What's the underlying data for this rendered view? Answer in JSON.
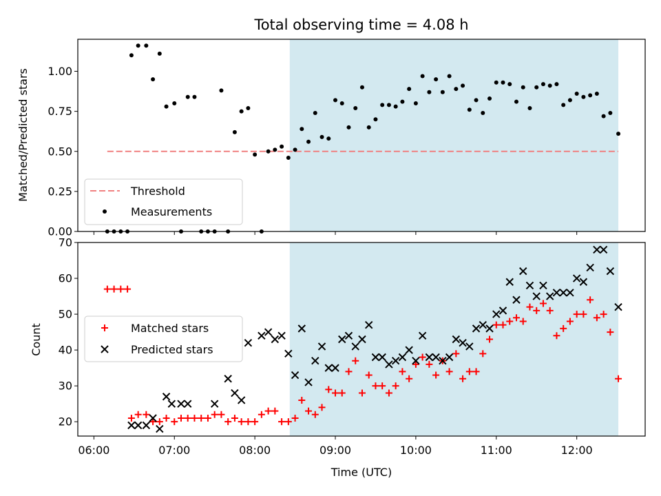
{
  "chart_data": [
    {
      "type": "scatter",
      "title": "Total observing time = 4.08 h",
      "xlabel": "",
      "ylabel": "Matched/Predicted stars",
      "ylim": [
        0,
        1.2
      ],
      "yticks": [
        "0.00",
        "0.25",
        "0.50",
        "0.75",
        "1.00"
      ],
      "xlim": [
        "05:48",
        "12:51"
      ],
      "shaded_region": {
        "x_start": "08:26",
        "x_end": "12:31",
        "color": "#d3e9f0"
      },
      "threshold": {
        "name": "Threshold",
        "value": 0.5,
        "x_start": "06:10",
        "x_end": "12:31",
        "color": "#f08080",
        "style": "dashed"
      },
      "series": [
        {
          "name": "Measurements",
          "color": "#000000",
          "x": [
            "06:10",
            "06:15",
            "06:20",
            "06:25",
            "06:28",
            "06:33",
            "06:39",
            "06:44",
            "06:49",
            "06:54",
            "07:00",
            "07:05",
            "07:10",
            "07:15",
            "07:20",
            "07:25",
            "07:30",
            "07:35",
            "07:40",
            "07:45",
            "07:50",
            "07:55",
            "08:00",
            "08:05",
            "08:10",
            "08:15",
            "08:20",
            "08:25",
            "08:30",
            "08:35",
            "08:40",
            "08:45",
            "08:50",
            "08:55",
            "09:00",
            "09:05",
            "09:10",
            "09:15",
            "09:20",
            "09:25",
            "09:30",
            "09:35",
            "09:40",
            "09:45",
            "09:50",
            "09:55",
            "10:00",
            "10:05",
            "10:10",
            "10:15",
            "10:20",
            "10:25",
            "10:30",
            "10:35",
            "10:40",
            "10:45",
            "10:50",
            "10:55",
            "11:00",
            "11:05",
            "11:10",
            "11:15",
            "11:20",
            "11:25",
            "11:30",
            "11:35",
            "11:40",
            "11:45",
            "11:50",
            "11:55",
            "12:00",
            "12:05",
            "12:10",
            "12:15",
            "12:20",
            "12:25",
            "12:31"
          ],
          "y": [
            0.0,
            0.0,
            0.0,
            0.0,
            1.1,
            1.16,
            1.16,
            0.95,
            1.11,
            0.78,
            0.8,
            0.0,
            0.84,
            0.84,
            0.0,
            0.0,
            0.0,
            0.88,
            0.0,
            0.62,
            0.75,
            0.77,
            0.48,
            0.0,
            0.5,
            0.51,
            0.53,
            0.46,
            0.51,
            0.64,
            0.56,
            0.74,
            0.59,
            0.58,
            0.82,
            0.8,
            0.65,
            0.77,
            0.9,
            0.65,
            0.7,
            0.79,
            0.79,
            0.78,
            0.81,
            0.89,
            0.8,
            0.97,
            0.87,
            0.95,
            0.87,
            0.97,
            0.89,
            0.91,
            0.76,
            0.82,
            0.74,
            0.83,
            0.93,
            0.93,
            0.92,
            0.81,
            0.9,
            0.77,
            0.9,
            0.92,
            0.91,
            0.92,
            0.79,
            0.82,
            0.86,
            0.84,
            0.85,
            0.86,
            0.72,
            0.74,
            0.61
          ]
        }
      ],
      "legend": {
        "position": "lower-left",
        "entries": [
          "Threshold",
          "Measurements"
        ]
      }
    },
    {
      "type": "scatter",
      "title": "",
      "xlabel": "Time (UTC)",
      "ylabel": "Count",
      "ylim": [
        16,
        70
      ],
      "yticks": [
        "20",
        "30",
        "40",
        "50",
        "60",
        "70"
      ],
      "xlim": [
        "05:48",
        "12:51"
      ],
      "xticks": [
        "06:00",
        "07:00",
        "08:00",
        "09:00",
        "10:00",
        "11:00",
        "12:00"
      ],
      "shaded_region": {
        "x_start": "08:26",
        "x_end": "12:31",
        "color": "#d3e9f0"
      },
      "series": [
        {
          "name": "Matched stars",
          "marker": "plus",
          "color": "#ff0000",
          "x": [
            "06:10",
            "06:15",
            "06:20",
            "06:25",
            "06:28",
            "06:33",
            "06:39",
            "06:44",
            "06:49",
            "06:54",
            "07:00",
            "07:05",
            "07:10",
            "07:15",
            "07:20",
            "07:25",
            "07:30",
            "07:35",
            "07:40",
            "07:45",
            "07:50",
            "07:55",
            "08:00",
            "08:05",
            "08:10",
            "08:15",
            "08:20",
            "08:25",
            "08:30",
            "08:35",
            "08:40",
            "08:45",
            "08:50",
            "08:55",
            "09:00",
            "09:05",
            "09:10",
            "09:15",
            "09:20",
            "09:25",
            "09:30",
            "09:35",
            "09:40",
            "09:45",
            "09:50",
            "09:55",
            "10:00",
            "10:05",
            "10:10",
            "10:15",
            "10:20",
            "10:25",
            "10:30",
            "10:35",
            "10:40",
            "10:45",
            "10:50",
            "10:55",
            "11:00",
            "11:05",
            "11:10",
            "11:15",
            "11:20",
            "11:25",
            "11:30",
            "11:35",
            "11:40",
            "11:45",
            "11:50",
            "11:55",
            "12:00",
            "12:05",
            "12:10",
            "12:15",
            "12:20",
            "12:25",
            "12:31"
          ],
          "y": [
            57,
            57,
            57,
            57,
            21,
            22,
            22,
            20,
            20,
            21,
            20,
            21,
            21,
            21,
            21,
            21,
            22,
            22,
            20,
            21,
            20,
            20,
            20,
            22,
            23,
            23,
            20,
            20,
            21,
            26,
            23,
            22,
            24,
            29,
            28,
            28,
            34,
            37,
            28,
            33,
            30,
            30,
            28,
            30,
            34,
            32,
            36,
            38,
            36,
            33,
            37,
            34,
            39,
            32,
            34,
            34,
            39,
            43,
            47,
            47,
            48,
            49,
            48,
            52,
            51,
            53,
            51,
            44,
            46,
            48,
            50,
            50,
            54,
            49,
            50,
            45,
            32
          ]
        },
        {
          "name": "Predicted stars",
          "marker": "x",
          "color": "#000000",
          "x": [
            "06:28",
            "06:33",
            "06:39",
            "06:44",
            "06:49",
            "06:54",
            "06:58",
            "07:05",
            "07:10",
            "07:30",
            "07:40",
            "07:45",
            "07:50",
            "07:55",
            "08:05",
            "08:10",
            "08:15",
            "08:20",
            "08:25",
            "08:30",
            "08:35",
            "08:40",
            "08:45",
            "08:50",
            "08:55",
            "09:00",
            "09:05",
            "09:10",
            "09:15",
            "09:20",
            "09:25",
            "09:30",
            "09:35",
            "09:40",
            "09:45",
            "09:50",
            "09:55",
            "10:00",
            "10:05",
            "10:10",
            "10:15",
            "10:20",
            "10:25",
            "10:30",
            "10:35",
            "10:40",
            "10:45",
            "10:50",
            "10:55",
            "11:00",
            "11:05",
            "11:10",
            "11:15",
            "11:20",
            "11:25",
            "11:30",
            "11:35",
            "11:40",
            "11:45",
            "11:50",
            "11:55",
            "12:00",
            "12:05",
            "12:10",
            "12:15",
            "12:20",
            "12:25",
            "12:31"
          ],
          "y": [
            19,
            19,
            19,
            21,
            18,
            27,
            25,
            25,
            25,
            25,
            32,
            28,
            26,
            42,
            44,
            45,
            43,
            44,
            39,
            33,
            46,
            31,
            37,
            41,
            35,
            35,
            43,
            44,
            41,
            43,
            47,
            38,
            38,
            36,
            37,
            38,
            40,
            37,
            44,
            38,
            38,
            37,
            38,
            43,
            42,
            41,
            46,
            47,
            46,
            50,
            51,
            59,
            54,
            62,
            58,
            55,
            58,
            55,
            56,
            56,
            56,
            60,
            59,
            63,
            68,
            68,
            62,
            52
          ]
        }
      ],
      "legend": {
        "position": "center-left",
        "entries": [
          "Matched stars",
          "Predicted stars"
        ]
      }
    }
  ]
}
